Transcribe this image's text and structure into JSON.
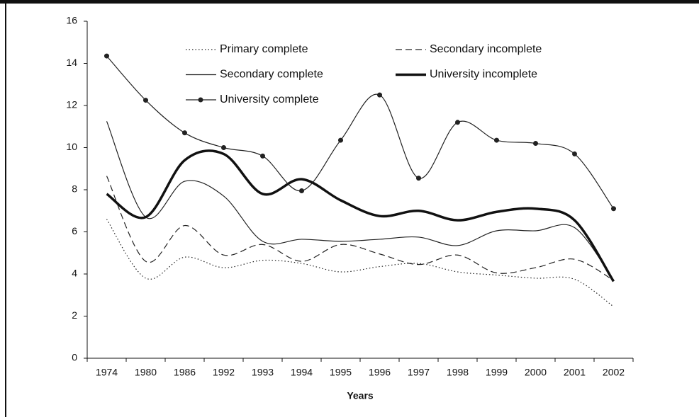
{
  "chart_data": {
    "type": "line",
    "xlabel": "Years",
    "categories": [
      "1974",
      "1980",
      "1986",
      "1992",
      "1993",
      "1994",
      "1995",
      "1996",
      "1997",
      "1998",
      "1999",
      "2000",
      "2001",
      "2002"
    ],
    "ylim": [
      0,
      16
    ],
    "yticks": [
      0,
      2,
      4,
      6,
      8,
      10,
      12,
      14,
      16
    ],
    "series": [
      {
        "name": "Primary complete",
        "color": "#222222",
        "line_style": "dotted",
        "line_width": 1.2,
        "values": [
          6.6,
          3.8,
          4.8,
          4.3,
          4.65,
          4.5,
          4.1,
          4.35,
          4.5,
          4.1,
          3.95,
          3.8,
          3.75,
          2.45
        ]
      },
      {
        "name": "Secondary incomplete",
        "color": "#222222",
        "line_style": "dashed",
        "line_width": 1.2,
        "values": [
          8.65,
          4.6,
          6.3,
          4.9,
          5.4,
          4.6,
          5.4,
          4.95,
          4.45,
          4.9,
          4.05,
          4.3,
          4.7,
          3.7
        ]
      },
      {
        "name": "Secondary complete",
        "color": "#222222",
        "line_style": "solid",
        "line_width": 1.2,
        "values": [
          11.25,
          6.7,
          8.4,
          7.7,
          5.55,
          5.65,
          5.55,
          5.65,
          5.75,
          5.35,
          6.05,
          6.05,
          6.2,
          3.7
        ]
      },
      {
        "name": "University incomplete",
        "color": "#111111",
        "line_style": "solid",
        "line_width": 3.5,
        "values": [
          7.8,
          6.7,
          9.4,
          9.7,
          7.8,
          8.5,
          7.5,
          6.75,
          7.0,
          6.55,
          6.95,
          7.1,
          6.55,
          3.65
        ]
      },
      {
        "name": "University complete",
        "color": "#222222",
        "line_style": "solid",
        "line_width": 1.2,
        "marker": "circle",
        "values": [
          14.35,
          12.25,
          10.7,
          10.0,
          9.6,
          7.95,
          10.35,
          12.5,
          8.55,
          11.2,
          10.35,
          10.2,
          9.7,
          7.1
        ]
      }
    ]
  }
}
